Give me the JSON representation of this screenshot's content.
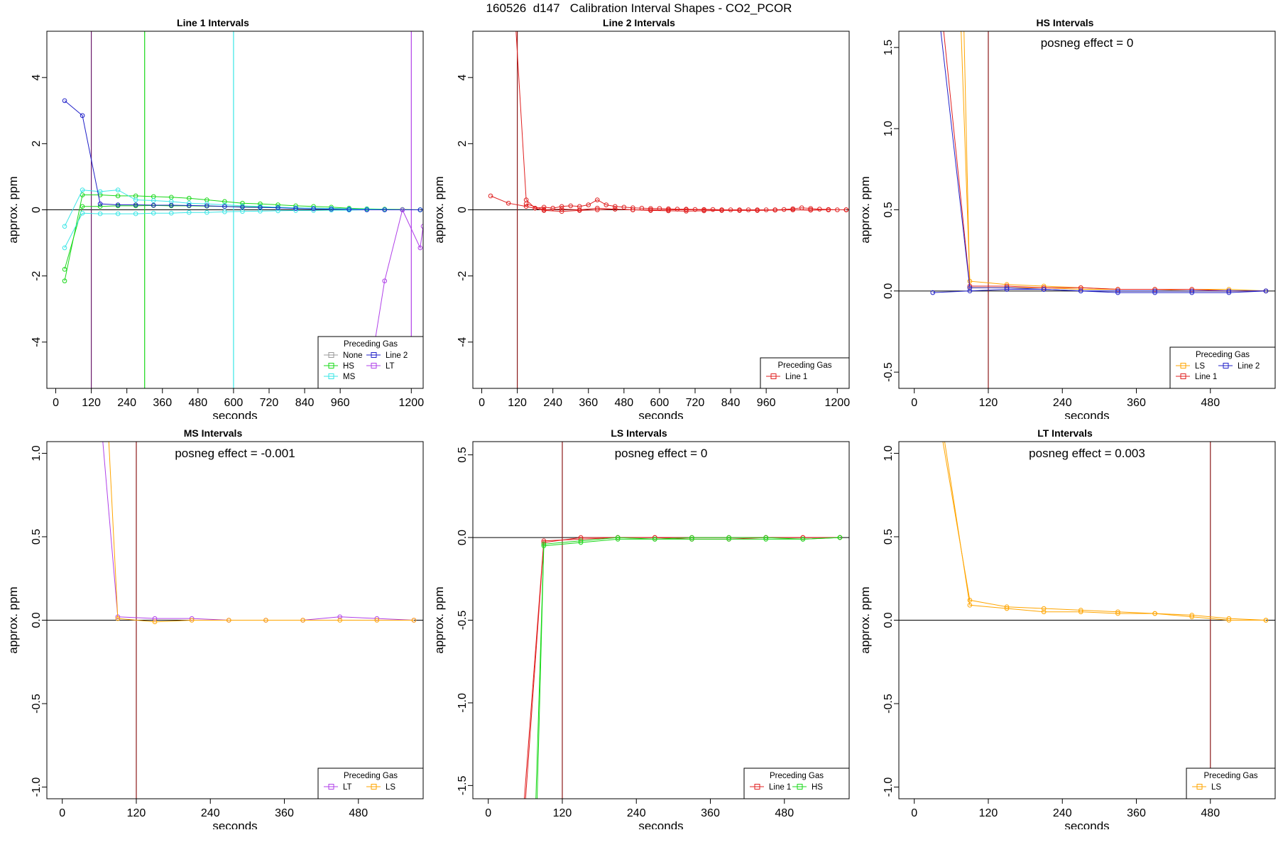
{
  "main_title": "160526  d147   Calibration Interval Shapes - CO2_PCOR",
  "colors": {
    "None": "#9a9a9a",
    "HS": "#18d818",
    "MS": "#3ae6e6",
    "Line 2": "#2020c8",
    "LT": "#b040e8",
    "Line 1": "#e02020",
    "LS": "#ffa500",
    "vline_dark": "#8b1a1a"
  },
  "chart_data": [
    {
      "type": "line",
      "title": "Line 1 Intervals",
      "xlabel": "seconds",
      "ylabel": "approx. ppm",
      "xlim": [
        -30,
        1240
      ],
      "ylim": [
        -5.4,
        5.4
      ],
      "xticks": [
        0,
        120,
        240,
        360,
        480,
        600,
        720,
        840,
        960,
        1200
      ],
      "yticks": [
        -4,
        -2,
        0,
        2,
        4
      ],
      "hline": 0,
      "vlines": [
        {
          "x": 120,
          "color": "#6b1a6b"
        },
        {
          "x": 300,
          "color": "#18d818"
        },
        {
          "x": 600,
          "color": "#3ae6e6"
        },
        {
          "x": 1200,
          "color": "#b040e8"
        }
      ],
      "legend": {
        "title": "Preceding Gas",
        "position": "bottom-right",
        "columns": 2,
        "entries": [
          "None",
          "HS",
          "MS",
          "Line 2",
          "LT"
        ]
      },
      "series": [
        {
          "name": "HS",
          "x": [
            30,
            90,
            150,
            210,
            270,
            330,
            390,
            450,
            510,
            570,
            630,
            690,
            750,
            810,
            870,
            930,
            990,
            1050,
            1110,
            1170,
            1230
          ],
          "y": [
            -2.15,
            0.45,
            0.45,
            0.42,
            0.42,
            0.4,
            0.38,
            0.35,
            0.3,
            0.25,
            0.2,
            0.18,
            0.15,
            0.12,
            0.1,
            0.08,
            0.05,
            0.03,
            0.02,
            0.01,
            0.0
          ]
        },
        {
          "name": "HS",
          "x": [
            30,
            90,
            150,
            210,
            270,
            330,
            390,
            450,
            510,
            570,
            630,
            690,
            750,
            810,
            870,
            930,
            990,
            1050,
            1110,
            1170,
            1230
          ],
          "y": [
            -1.8,
            0.1,
            0.1,
            0.12,
            0.12,
            0.13,
            0.12,
            0.12,
            0.11,
            0.1,
            0.09,
            0.08,
            0.07,
            0.06,
            0.05,
            0.04,
            0.03,
            0.02,
            0.01,
            0.0,
            0.0
          ]
        },
        {
          "name": "MS",
          "x": [
            30,
            90,
            150,
            210,
            270,
            330,
            390,
            450,
            510,
            570,
            630,
            690,
            750,
            810,
            870,
            930,
            990,
            1050,
            1110,
            1170,
            1230
          ],
          "y": [
            -0.5,
            0.6,
            0.55,
            0.6,
            0.3,
            0.28,
            0.25,
            0.2,
            0.18,
            0.15,
            0.12,
            0.1,
            0.08,
            0.06,
            0.05,
            0.04,
            0.03,
            0.02,
            0.01,
            0.0,
            0.0
          ]
        },
        {
          "name": "MS",
          "x": [
            30,
            90,
            150,
            210,
            270,
            330,
            390,
            450,
            510,
            570,
            630,
            690,
            750,
            810,
            870,
            930,
            990,
            1050,
            1110,
            1170,
            1230
          ],
          "y": [
            -1.15,
            -0.1,
            -0.12,
            -0.12,
            -0.12,
            -0.1,
            -0.1,
            -0.08,
            -0.08,
            -0.06,
            -0.05,
            -0.04,
            -0.03,
            -0.02,
            -0.02,
            -0.01,
            -0.01,
            0.0,
            0.0,
            0.0,
            0.0
          ]
        },
        {
          "name": "Line 2",
          "x": [
            30,
            90,
            150,
            210,
            270,
            330,
            390,
            450,
            510,
            570,
            630,
            690,
            750,
            810,
            870,
            930,
            990,
            1050,
            1110,
            1170,
            1230
          ],
          "y": [
            3.3,
            2.85,
            0.18,
            0.15,
            0.15,
            0.14,
            0.14,
            0.13,
            0.12,
            0.1,
            0.08,
            0.07,
            0.06,
            0.04,
            0.03,
            0.02,
            0.01,
            0.0,
            0.0,
            0.0,
            0.0
          ]
        },
        {
          "name": "LT",
          "x": [
            1050,
            1110,
            1170,
            1230,
            1240
          ],
          "y": [
            -5.5,
            -2.15,
            0.0,
            -1.15,
            -0.5
          ]
        }
      ]
    },
    {
      "type": "line",
      "title": "Line 2 Intervals",
      "xlabel": "seconds",
      "ylabel": "approx. ppm",
      "xlim": [
        -30,
        1240
      ],
      "ylim": [
        -5.4,
        5.4
      ],
      "xticks": [
        0,
        120,
        240,
        360,
        480,
        600,
        720,
        840,
        960,
        1200
      ],
      "yticks": [
        -4,
        -2,
        0,
        2,
        4
      ],
      "hline": 0,
      "vlines": [
        {
          "x": 120,
          "color": "#8b1a1a"
        }
      ],
      "legend": {
        "title": "Preceding Gas",
        "position": "bottom-right",
        "columns": 1,
        "entries": [
          "Line 1"
        ]
      },
      "series": [
        {
          "name": "Line 1",
          "x": [
            115,
            150,
            180,
            210,
            240,
            270,
            300,
            330,
            360,
            390,
            420,
            450,
            480,
            510,
            540,
            570,
            600,
            630,
            660,
            690,
            720,
            750,
            780,
            810,
            840,
            870,
            900,
            930,
            960,
            990,
            1020,
            1050,
            1080,
            1110,
            1140,
            1170,
            1200,
            1230
          ],
          "y": [
            5.5,
            0.3,
            0.05,
            0.08,
            0.05,
            0.1,
            0.12,
            0.1,
            0.15,
            0.3,
            0.15,
            0.1,
            0.08,
            0.06,
            0.05,
            0.04,
            0.04,
            0.03,
            0.02,
            0.02,
            0.01,
            0.01,
            0.01,
            0.0,
            0.0,
            0.0,
            0.0,
            0.0,
            0.0,
            0.0,
            0.01,
            0.03,
            0.06,
            0.04,
            0.02,
            0.01,
            0.0,
            0.0
          ]
        },
        {
          "name": "Line 1",
          "x": [
            30,
            90,
            150,
            210,
            270,
            330,
            390,
            450,
            510,
            570,
            630,
            690,
            750,
            810,
            870,
            930,
            990,
            1050,
            1110,
            1170,
            1230
          ],
          "y": [
            0.42,
            0.2,
            0.1,
            -0.02,
            -0.05,
            -0.02,
            0.0,
            0.02,
            0.0,
            -0.02,
            -0.03,
            -0.04,
            -0.03,
            -0.02,
            -0.02,
            -0.02,
            -0.01,
            0.0,
            -0.01,
            0.0,
            0.0
          ]
        },
        {
          "name": "Line 1",
          "x": [
            150,
            210,
            270,
            330,
            390,
            450,
            510,
            570,
            630,
            690,
            750,
            810,
            870,
            930,
            990,
            1050,
            1110,
            1170,
            1230
          ],
          "y": [
            0.18,
            0.0,
            0.02,
            0.0,
            0.05,
            0.02,
            0.0,
            0.0,
            0.0,
            0.0,
            0.0,
            0.0,
            -0.01,
            -0.01,
            0.0,
            0.0,
            0.0,
            0.0,
            0.0
          ]
        }
      ]
    },
    {
      "type": "line",
      "title": "HS Intervals",
      "xlabel": "seconds",
      "ylabel": "approx. ppm",
      "annotation": "posneg effect = 0",
      "xlim": [
        -25,
        585
      ],
      "ylim": [
        -0.6,
        1.6
      ],
      "xticks": [
        0,
        120,
        240,
        360,
        480
      ],
      "yticks": [
        -0.5,
        0.0,
        0.5,
        1.0,
        1.5
      ],
      "hline": 0,
      "vlines": [
        {
          "x": 120,
          "color": "#8b1a1a"
        }
      ],
      "legend": {
        "title": "Preceding Gas",
        "position": "bottom-right",
        "columns": 2,
        "entries": [
          "LS",
          "Line 1",
          "Line 2"
        ]
      },
      "series": [
        {
          "name": "LS",
          "x": [
            75,
            90,
            150,
            210,
            270,
            330,
            390,
            450,
            510,
            570
          ],
          "y": [
            1.7,
            0.06,
            0.04,
            0.03,
            0.02,
            0.01,
            0.01,
            0.01,
            0.01,
            0.0
          ]
        },
        {
          "name": "LS",
          "x": [
            80,
            90,
            150,
            210,
            270,
            330,
            390,
            450,
            510,
            570
          ],
          "y": [
            1.7,
            0.02,
            0.02,
            0.02,
            0.01,
            0.01,
            0.01,
            0.0,
            0.0,
            0.0
          ]
        },
        {
          "name": "Line 1",
          "x": [
            45,
            90,
            150,
            210,
            270,
            330,
            390,
            450,
            510,
            570
          ],
          "y": [
            1.7,
            0.03,
            0.03,
            0.02,
            0.02,
            0.01,
            0.01,
            0.01,
            0.0,
            0.0
          ]
        },
        {
          "name": "Line 2",
          "x": [
            30,
            90,
            150,
            210,
            270,
            330,
            390,
            450,
            510,
            570
          ],
          "y": [
            -0.01,
            0.0,
            0.01,
            0.01,
            0.0,
            -0.01,
            -0.01,
            -0.01,
            -0.01,
            0.0
          ]
        },
        {
          "name": "Line 2",
          "x": [
            40,
            90,
            150,
            210,
            270,
            330,
            390,
            450,
            510,
            570
          ],
          "y": [
            1.7,
            0.02,
            0.02,
            0.01,
            0.0,
            0.0,
            0.0,
            0.0,
            0.0,
            0.0
          ]
        }
      ]
    },
    {
      "type": "line",
      "title": "MS Intervals",
      "xlabel": "seconds",
      "ylabel": "approx. ppm",
      "annotation": "posneg effect = -0.001",
      "xlim": [
        -25,
        585
      ],
      "ylim": [
        -1.07,
        1.07
      ],
      "xticks": [
        0,
        120,
        240,
        360,
        480
      ],
      "yticks": [
        -1.0,
        -0.5,
        0.0,
        0.5,
        1.0
      ],
      "hline": 0,
      "vlines": [
        {
          "x": 120,
          "color": "#8b1a1a"
        }
      ],
      "legend": {
        "title": "Preceding Gas",
        "position": "bottom-right",
        "columns": 2,
        "entries": [
          "LT",
          "LS"
        ]
      },
      "series": [
        {
          "name": "LT",
          "x": [
            65,
            90,
            150,
            210,
            270,
            330,
            390,
            450,
            510,
            570
          ],
          "y": [
            1.1,
            0.02,
            0.01,
            0.01,
            0.0,
            0.0,
            0.0,
            0.02,
            0.01,
            0.0
          ]
        },
        {
          "name": "LS",
          "x": [
            75,
            90,
            150,
            210,
            270,
            330,
            390,
            450,
            510,
            570
          ],
          "y": [
            1.1,
            0.01,
            -0.01,
            0.0,
            0.0,
            0.0,
            0.0,
            0.0,
            0.0,
            0.0
          ]
        }
      ]
    },
    {
      "type": "line",
      "title": "LS Intervals",
      "xlabel": "seconds",
      "ylabel": "approx. ppm",
      "annotation": "posneg effect = 0",
      "xlim": [
        -25,
        585
      ],
      "ylim": [
        -1.58,
        0.58
      ],
      "xticks": [
        0,
        120,
        240,
        360,
        480
      ],
      "yticks": [
        -1.5,
        -1.0,
        -0.5,
        0.0,
        0.5
      ],
      "hline": 0,
      "vlines": [
        {
          "x": 120,
          "color": "#8b1a1a"
        }
      ],
      "legend": {
        "title": "Preceding Gas",
        "position": "bottom-right",
        "columns": 2,
        "entries": [
          "Line 1",
          "HS"
        ]
      },
      "series": [
        {
          "name": "Line 1",
          "x": [
            58,
            90,
            150,
            210,
            270,
            330,
            390,
            450,
            510,
            570
          ],
          "y": [
            -1.6,
            -0.02,
            -0.01,
            0.0,
            0.0,
            0.0,
            0.0,
            0.0,
            0.0,
            0.0
          ]
        },
        {
          "name": "Line 1",
          "x": [
            60,
            90,
            150,
            210,
            270,
            330,
            390,
            450,
            510,
            570
          ],
          "y": [
            -1.6,
            -0.03,
            0.0,
            0.0,
            0.0,
            -0.01,
            -0.01,
            0.0,
            0.0,
            0.0
          ]
        },
        {
          "name": "HS",
          "x": [
            77,
            90,
            150,
            210,
            270,
            330,
            390,
            450,
            510,
            570
          ],
          "y": [
            -1.6,
            -0.04,
            -0.02,
            0.0,
            -0.01,
            0.0,
            0.0,
            0.0,
            -0.01,
            0.0
          ]
        },
        {
          "name": "HS",
          "x": [
            79,
            90,
            150,
            210,
            270,
            330,
            390,
            450,
            510,
            570
          ],
          "y": [
            -1.6,
            -0.05,
            -0.03,
            -0.01,
            -0.01,
            -0.01,
            -0.01,
            -0.01,
            -0.01,
            0.0
          ]
        }
      ]
    },
    {
      "type": "line",
      "title": "LT Intervals",
      "xlabel": "seconds",
      "ylabel": "approx. ppm",
      "annotation": "posneg effect = 0.003",
      "xlim": [
        -25,
        585
      ],
      "ylim": [
        -1.07,
        1.07
      ],
      "xticks": [
        0,
        120,
        240,
        360,
        480
      ],
      "yticks": [
        -1.0,
        -0.5,
        0.0,
        0.5,
        1.0
      ],
      "hline": 0,
      "vlines": [
        {
          "x": 480,
          "color": "#8b1a1a"
        }
      ],
      "legend": {
        "title": "Preceding Gas",
        "position": "bottom-right",
        "columns": 1,
        "entries": [
          "LS"
        ]
      },
      "series": [
        {
          "name": "LS",
          "x": [
            45,
            90,
            150,
            210,
            270,
            330,
            390,
            450,
            510,
            570
          ],
          "y": [
            1.1,
            0.12,
            0.08,
            0.07,
            0.06,
            0.05,
            0.04,
            0.03,
            0.01,
            0.0
          ]
        },
        {
          "name": "LS",
          "x": [
            48,
            90,
            150,
            210,
            270,
            330,
            390,
            450,
            510,
            570
          ],
          "y": [
            1.1,
            0.09,
            0.07,
            0.05,
            0.05,
            0.04,
            0.04,
            0.02,
            0.0,
            0.0
          ]
        }
      ]
    }
  ]
}
